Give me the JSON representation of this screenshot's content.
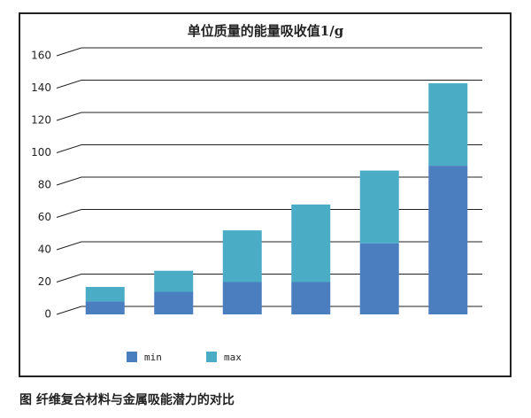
{
  "chart_data": {
    "type": "stacked_bar",
    "title": "单位质量的能量吸收值1/g",
    "categories": [
      null,
      null,
      null,
      null,
      null,
      null
    ],
    "series": [
      {
        "name": "min",
        "color": "#4a7ebf",
        "values": [
          8,
          14,
          20,
          20,
          44,
          92
        ]
      },
      {
        "name": "max",
        "color": "#4bacc6",
        "values": [
          9,
          13,
          32,
          48,
          45,
          51
        ]
      }
    ],
    "ylim": [
      0,
      160
    ],
    "yticks": [
      0,
      20,
      40,
      60,
      80,
      100,
      120,
      140,
      160
    ],
    "grid": true,
    "legend": "bottom"
  },
  "caption": "图 纤维复合材料与金属吸能潜力的对比"
}
